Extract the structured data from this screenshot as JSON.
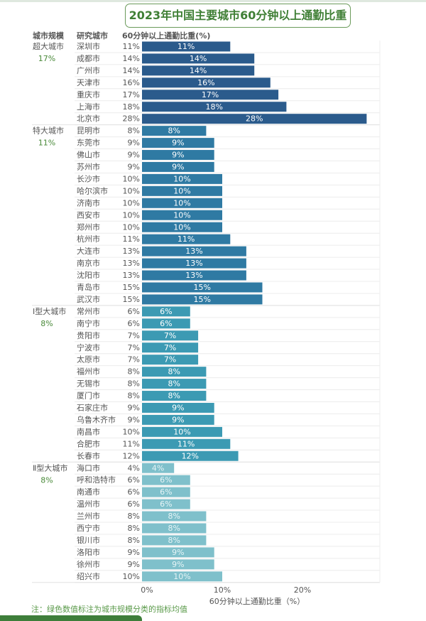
{
  "chart_data": {
    "type": "bar",
    "orientation": "horizontal",
    "title": "2023年中国主要城市60分钟以上通勤比重",
    "column_headers": [
      "城市规模",
      "研究城市",
      "60分钟以上通勤比重(%)"
    ],
    "xlabel": "60分钟以上通勤比重（%）",
    "xlim": [
      0,
      30
    ],
    "xticks": [
      "0%",
      "10%",
      "20%"
    ],
    "grid": true,
    "groups": [
      {
        "name": "超大城市",
        "mean": "17%",
        "color": "#2b5b8c",
        "cities": [
          "深圳市",
          "成都市",
          "广州市",
          "天津市",
          "重庆市",
          "上海市",
          "北京市"
        ],
        "values": [
          11,
          14,
          14,
          16,
          17,
          18,
          28
        ]
      },
      {
        "name": "特大城市",
        "mean": "11%",
        "color": "#2f7aa3",
        "cities": [
          "昆明市",
          "东莞市",
          "佛山市",
          "苏州市",
          "长沙市",
          "哈尔滨市",
          "济南市",
          "西安市",
          "郑州市",
          "杭州市",
          "大连市",
          "南京市",
          "沈阳市",
          "青岛市",
          "武汉市"
        ],
        "values": [
          8,
          9,
          9,
          9,
          10,
          10,
          10,
          10,
          10,
          11,
          13,
          13,
          13,
          15,
          15
        ]
      },
      {
        "name": "Ⅰ型大城市",
        "mean": "8%",
        "color": "#3c9ab3",
        "cities": [
          "常州市",
          "南宁市",
          "贵阳市",
          "宁波市",
          "太原市",
          "福州市",
          "无锡市",
          "厦门市",
          "石家庄市",
          "乌鲁木齐市",
          "南昌市",
          "合肥市",
          "长春市"
        ],
        "values": [
          6,
          6,
          7,
          7,
          7,
          8,
          8,
          8,
          9,
          9,
          10,
          11,
          12
        ]
      },
      {
        "name": "Ⅱ型大城市",
        "mean": "8%",
        "color": "#7fc0cb",
        "cities": [
          "海口市",
          "呼和浩特市",
          "南通市",
          "温州市",
          "兰州市",
          "西宁市",
          "银川市",
          "洛阳市",
          "徐州市",
          "绍兴市"
        ],
        "values": [
          4,
          6,
          6,
          6,
          8,
          8,
          8,
          9,
          9,
          10
        ]
      }
    ]
  },
  "note": "注：绿色数值标注为城市规模分类的指标均值"
}
